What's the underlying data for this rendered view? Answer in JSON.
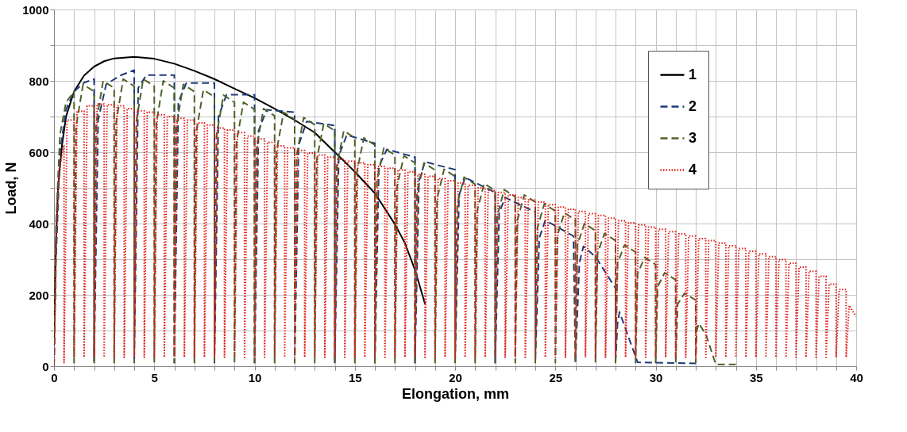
{
  "chart_data": {
    "type": "line",
    "xlabel": "Elongation, mm",
    "ylabel": "Load, N",
    "xlim": [
      0,
      40
    ],
    "ylim": [
      0,
      1000
    ],
    "xticks": [
      0,
      {
        "value": 1,
        "label": null
      },
      {
        "value": 2,
        "label": null
      },
      {
        "value": 3,
        "label": null
      },
      {
        "value": 4,
        "label": null
      },
      5,
      {
        "value": 6,
        "label": null
      },
      {
        "value": 7,
        "label": null
      },
      {
        "value": 8,
        "label": null
      },
      {
        "value": 9,
        "label": null
      },
      10,
      {
        "value": 11,
        "label": null
      },
      {
        "value": 12,
        "label": null
      },
      {
        "value": 13,
        "label": null
      },
      {
        "value": 14,
        "label": null
      },
      15,
      {
        "value": 16,
        "label": null
      },
      {
        "value": 17,
        "label": null
      },
      {
        "value": 18,
        "label": null
      },
      {
        "value": 19,
        "label": null
      },
      20,
      {
        "value": 21,
        "label": null
      },
      {
        "value": 22,
        "label": null
      },
      {
        "value": 23,
        "label": null
      },
      {
        "value": 24,
        "label": null
      },
      25,
      {
        "value": 26,
        "label": null
      },
      {
        "value": 27,
        "label": null
      },
      {
        "value": 28,
        "label": null
      },
      {
        "value": 29,
        "label": null
      },
      30,
      {
        "value": 31,
        "label": null
      },
      {
        "value": 32,
        "label": null
      },
      {
        "value": 33,
        "label": null
      },
      {
        "value": 34,
        "label": null
      },
      35,
      {
        "value": 36,
        "label": null
      },
      {
        "value": 37,
        "label": null
      },
      {
        "value": 38,
        "label": null
      },
      {
        "value": 39,
        "label": null
      },
      40
    ],
    "yticks": [
      0,
      {
        "value": 100,
        "label": null
      },
      200,
      {
        "value": 300,
        "label": null
      },
      400,
      {
        "value": 500,
        "label": null
      },
      600,
      {
        "value": 700,
        "label": null
      },
      800,
      {
        "value": 900,
        "label": null
      },
      1000
    ],
    "grid": true,
    "legend": "top right",
    "series": [
      {
        "name": "1",
        "color": "#000000",
        "line_style": "solid",
        "x": [
          0,
          0.1,
          0.2,
          0.4,
          0.6,
          1,
          1.5,
          2,
          2.5,
          3,
          4,
          5,
          6,
          7,
          8,
          9,
          10,
          11,
          12,
          13,
          14,
          14.5,
          15,
          16,
          17,
          17.5,
          18,
          18.5
        ],
        "values": [
          60,
          350,
          500,
          620,
          700,
          770,
          815,
          840,
          855,
          863,
          867,
          862,
          848,
          828,
          805,
          778,
          752,
          722,
          690,
          655,
          600,
          573,
          545,
          485,
          398,
          345,
          270,
          175
        ]
      },
      {
        "name": "2",
        "color": "#1f3a7a",
        "line_style": "dashed",
        "x": [
          0,
          0.1,
          0.3,
          0.6,
          1,
          1.5,
          2,
          2,
          2.2,
          2.6,
          3.3,
          4,
          4,
          4.2,
          4.6,
          6,
          6,
          6.2,
          6.6,
          8,
          8,
          8.2,
          8.6,
          10,
          10,
          10.2,
          10.6,
          12,
          12,
          12.2,
          12.6,
          14,
          14,
          14.2,
          14.6,
          16,
          16,
          16.2,
          16.6,
          18,
          18,
          18.2,
          18.5,
          20,
          20,
          20.2,
          20.5,
          22,
          22,
          22.2,
          22.5,
          24,
          24,
          24.2,
          24.5,
          25.9,
          26,
          26.2,
          26.4,
          27,
          28,
          28,
          28.1,
          28.2,
          29.1,
          32
        ],
        "values": [
          0,
          300,
          600,
          720,
          770,
          795,
          805,
          15,
          690,
          790,
          815,
          830,
          10,
          780,
          816,
          816,
          10,
          740,
          794,
          794,
          10,
          700,
          761,
          761,
          10,
          660,
          719,
          712,
          10,
          620,
          686,
          675,
          10,
          590,
          648,
          625,
          10,
          560,
          608,
          586,
          10,
          520,
          573,
          551,
          10,
          480,
          529,
          487,
          10,
          430,
          473,
          432,
          10,
          360,
          409,
          365,
          10,
          290,
          336,
          307,
          219,
          10,
          120,
          152,
          11,
          8
        ]
      },
      {
        "name": "3",
        "color": "#4f6228",
        "line_style": "dashed",
        "x": [
          0,
          0.1,
          0.3,
          0.6,
          1,
          1,
          1.1,
          1.45,
          2,
          2,
          2.1,
          2.45,
          3,
          3,
          3.1,
          3.45,
          4,
          4,
          4.1,
          4.45,
          5,
          5,
          5.1,
          5.45,
          6,
          6,
          6.1,
          6.45,
          7,
          7,
          7.1,
          7.45,
          8,
          8,
          8.1,
          8.45,
          9,
          9,
          9.1,
          9.45,
          10,
          10,
          10.1,
          10.45,
          11,
          11,
          11.1,
          11.45,
          12,
          12,
          12.1,
          12.45,
          13,
          13,
          13.1,
          13.45,
          14,
          14,
          14.1,
          14.45,
          15,
          15,
          15.1,
          15.45,
          16,
          16,
          16.1,
          16.45,
          17,
          17,
          17.1,
          17.45,
          18,
          18,
          18.1,
          18.45,
          19,
          19,
          19.1,
          19.45,
          20,
          20,
          20.1,
          20.45,
          21,
          21,
          21.1,
          21.45,
          22,
          22,
          22.1,
          22.45,
          23,
          23,
          23.1,
          23.45,
          24,
          24,
          24.1,
          24.45,
          25,
          25,
          25.1,
          25.45,
          26,
          26,
          26.1,
          26.45,
          27,
          27,
          27.1,
          27.45,
          28,
          28,
          28.1,
          28.45,
          29,
          29,
          29.1,
          29.45,
          30,
          30,
          30.1,
          30.45,
          31,
          31,
          31.1,
          31.45,
          32,
          32,
          32.05,
          32.15,
          32.5,
          33,
          34
        ],
        "values": [
          0,
          400,
          650,
          740,
          770,
          10,
          672,
          790,
          770,
          10,
          680,
          800,
          780,
          10,
          684,
          805,
          785,
          10,
          684,
          805,
          785,
          10,
          680,
          800,
          780,
          10,
          672,
          790,
          770,
          10,
          659,
          775,
          755,
          10,
          646,
          760,
          740,
          10,
          629,
          740,
          720,
          10,
          614,
          722,
          702,
          10,
          605,
          712,
          692,
          10,
          592,
          697,
          677,
          10,
          578,
          680,
          660,
          10,
          561,
          660,
          640,
          10,
          544,
          640,
          620,
          10,
          520,
          612,
          592,
          10,
          502,
          590,
          570,
          10,
          485,
          570,
          550,
          10,
          469,
          552,
          532,
          10,
          451,
          530,
          510,
          10,
          435,
          512,
          492,
          10,
          421,
          495,
          475,
          10,
          408,
          480,
          460,
          10,
          387,
          455,
          435,
          10,
          366,
          430,
          410,
          10,
          340,
          400,
          380,
          10,
          316,
          372,
          352,
          10,
          289,
          340,
          320,
          10,
          259,
          305,
          285,
          10,
          223,
          262,
          242,
          10,
          174,
          205,
          185,
          10,
          100,
          120,
          90,
          5,
          5
        ]
      },
      {
        "name": "4",
        "color": "#e0201b",
        "line_style": "dotted",
        "x": [
          0,
          0.1,
          0.25,
          0.5,
          0.5,
          0.65,
          1,
          1,
          1.15,
          1.5,
          1.5,
          1.65,
          2,
          2,
          2.15,
          2.5,
          2.5,
          2.65,
          3,
          3,
          3.15,
          3.5,
          3.5,
          3.65,
          4,
          4,
          4.15,
          4.5,
          4.5,
          4.65,
          5,
          5,
          5.15,
          5.5,
          5.5,
          5.65,
          6,
          6,
          6.15,
          6.5,
          6.5,
          6.65,
          7,
          7,
          7.15,
          7.5,
          7.5,
          7.65,
          8,
          8,
          8.15,
          8.5,
          8.5,
          8.65,
          9,
          9,
          9.15,
          9.5,
          9.5,
          9.65,
          10,
          10,
          10.15,
          10.5,
          10.5,
          10.65,
          11,
          11,
          11.15,
          11.5,
          11.5,
          11.65,
          12,
          12,
          12.15,
          12.5,
          12.5,
          12.65,
          13,
          13,
          13.15,
          13.5,
          13.5,
          13.65,
          14,
          14,
          14.15,
          14.5,
          14.5,
          14.65,
          15,
          15,
          15.15,
          15.5,
          15.5,
          15.65,
          16,
          16,
          16.15,
          16.5,
          16.5,
          16.65,
          17,
          17,
          17.15,
          17.5,
          17.5,
          17.65,
          18,
          18,
          18.15,
          18.5,
          18.5,
          18.65,
          19,
          19,
          19.15,
          19.5,
          19.5,
          19.65,
          20,
          20,
          20.15,
          20.5,
          20.5,
          20.65,
          21,
          21,
          21.15,
          21.5,
          21.5,
          21.65,
          22,
          22,
          22.15,
          22.5,
          22.5,
          22.65,
          23,
          23,
          23.15,
          23.5,
          23.5,
          23.65,
          24,
          24,
          24.15,
          24.5,
          24.5,
          24.65,
          25,
          25,
          25.15,
          25.5,
          25.5,
          25.65,
          26,
          26,
          26.15,
          26.5,
          26.5,
          26.65,
          27,
          27,
          27.15,
          27.5,
          27.5,
          27.65,
          28,
          28,
          28.15,
          28.5,
          28.5,
          28.65,
          29,
          29,
          29.15,
          29.5,
          29.5,
          29.65,
          30,
          30,
          30.15,
          30.5,
          30.5,
          30.65,
          31,
          31,
          31.15,
          31.5,
          31.5,
          31.65,
          32,
          32,
          32.15,
          32.5,
          32.5,
          32.65,
          33,
          33,
          33.15,
          33.5,
          33.5,
          33.65,
          34,
          34,
          34.15,
          34.5,
          34.5,
          34.65,
          35,
          35,
          35.15,
          35.5,
          35.5,
          35.65,
          36,
          36,
          36.15,
          36.5,
          36.5,
          36.65,
          37,
          37,
          37.15,
          37.5,
          37.5,
          37.65,
          38,
          38,
          38.15,
          38.5,
          38.5,
          38.65,
          39,
          39,
          39.15,
          39.5,
          39.5,
          39.65,
          40
        ],
        "values": [
          0,
          350,
          550,
          620,
          10,
          690,
          690,
          25,
          715,
          715,
          25,
          730,
          730,
          25,
          735,
          735,
          25,
          733,
          733,
          25,
          730,
          730,
          25,
          722,
          722,
          25,
          716,
          716,
          25,
          712,
          712,
          25,
          705,
          705,
          25,
          700,
          700,
          25,
          695,
          695,
          25,
          690,
          690,
          25,
          682,
          682,
          25,
          676,
          676,
          25,
          668,
          668,
          25,
          662,
          662,
          25,
          655,
          655,
          25,
          645,
          645,
          25,
          637,
          637,
          25,
          628,
          628,
          25,
          618,
          618,
          25,
          612,
          612,
          25,
          605,
          605,
          25,
          598,
          598,
          25,
          592,
          592,
          25,
          586,
          586,
          25,
          580,
          580,
          25,
          575,
          575,
          25,
          570,
          570,
          25,
          565,
          565,
          25,
          560,
          560,
          25,
          555,
          555,
          25,
          550,
          550,
          25,
          545,
          545,
          25,
          538,
          538,
          25,
          532,
          532,
          25,
          526,
          526,
          25,
          520,
          520,
          25,
          514,
          514,
          25,
          507,
          507,
          25,
          500,
          500,
          25,
          493,
          493,
          25,
          487,
          487,
          25,
          480,
          480,
          25,
          473,
          473,
          25,
          466,
          466,
          25,
          460,
          460,
          25,
          453,
          453,
          25,
          446,
          446,
          25,
          440,
          440,
          25,
          434,
          434,
          25,
          428,
          428,
          25,
          423,
          423,
          25,
          415,
          415,
          25,
          408,
          408,
          25,
          402,
          402,
          25,
          396,
          396,
          25,
          390,
          390,
          25,
          384,
          384,
          25,
          377,
          377,
          25,
          371,
          371,
          25,
          365,
          365,
          25,
          358,
          358,
          25,
          352,
          352,
          25,
          345,
          345,
          25,
          338,
          338,
          25,
          330,
          330,
          25,
          322,
          322,
          25,
          315,
          315,
          25,
          307,
          307,
          25,
          299,
          299,
          25,
          289,
          289,
          25,
          278,
          278,
          25,
          266,
          266,
          25,
          252,
          252,
          25,
          230,
          230,
          25,
          215,
          215,
          25,
          170,
          140
        ]
      }
    ]
  }
}
